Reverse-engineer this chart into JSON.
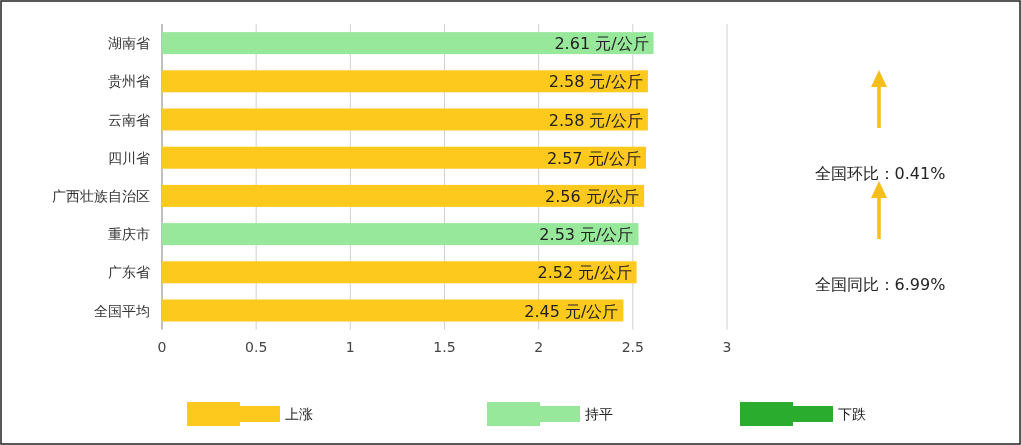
{
  "chart_data": [
    {
      "type": "bar",
      "orientation": "horizontal",
      "stacked": true,
      "categories": [
        "湖南省",
        "贵州省",
        "云南省",
        "四川省",
        "广西壮族自治区",
        "重庆市",
        "广东省",
        "全国平均"
      ],
      "series": [
        {
          "name": "上涨",
          "color": "#fdc91c",
          "values": [
            null,
            2.58,
            2.58,
            2.57,
            2.56,
            null,
            2.52,
            2.45
          ]
        },
        {
          "name": "持平",
          "color": "#98e89c",
          "values": [
            2.61,
            null,
            null,
            null,
            null,
            2.53,
            null,
            null
          ]
        },
        {
          "name": "下跌",
          "color": "#2aad2f",
          "values": [
            null,
            null,
            null,
            null,
            null,
            null,
            null,
            null
          ]
        }
      ],
      "value_labels": [
        "2.61 元/公斤",
        "2.58 元/公斤",
        "2.58 元/公斤",
        "2.57 元/公斤",
        "2.56 元/公斤",
        "2.53 元/公斤",
        "2.52 元/公斤",
        "2.45 元/公斤"
      ],
      "xlim": [
        0,
        3
      ],
      "xticks": [
        0,
        0.5,
        1,
        1.5,
        2,
        2.5,
        3
      ],
      "grid": "x",
      "legend": "bottom"
    },
    {
      "type": "other",
      "annotations": [
        "全国环比：0.41%",
        "全国同比：6.99%"
      ]
    }
  ]
}
